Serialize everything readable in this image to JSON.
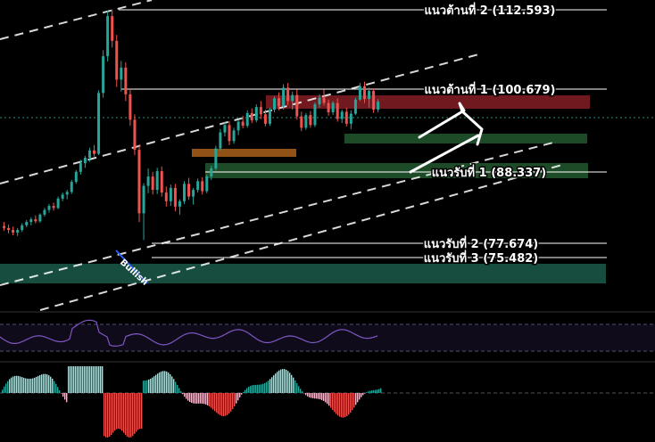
{
  "chart_data": {
    "type": "candlestick",
    "title": "",
    "levels": {
      "resistance": [
        {
          "label": "แนวต้านที่ 2 (112.593)",
          "value": 112.593
        },
        {
          "label": "แนวต้านที่ 1 (100.679)",
          "value": 100.679
        }
      ],
      "support": [
        {
          "label": "แนวรับที่ 1 (88.337)",
          "value": 88.337
        },
        {
          "label": "แนวรับที่ 2 (77.674)",
          "value": 77.674
        },
        {
          "label": "แนวรับที่ 3 (75.482)",
          "value": 75.482
        }
      ]
    },
    "annotation": "Bullish",
    "zones": [
      {
        "kind": "resistance",
        "color": "#7a1c22"
      },
      {
        "kind": "support",
        "color": "#1f4f2a"
      },
      {
        "kind": "demand",
        "color": "#1a5a4a"
      },
      {
        "kind": "supply-minor",
        "color": "#b5671b"
      }
    ],
    "colors": {
      "up": "#26a69a",
      "down": "#ef5350",
      "rsi": "#7e57c2",
      "background": "#000000",
      "lines": "#ffffff"
    },
    "ohlc": [
      [
        80.2,
        80.8,
        79.5,
        79.9
      ],
      [
        79.9,
        80.4,
        79.1,
        79.6
      ],
      [
        79.6,
        80.1,
        78.8,
        79.2
      ],
      [
        79.2,
        79.9,
        78.7,
        79.6
      ],
      [
        79.6,
        80.6,
        79.3,
        80.3
      ],
      [
        80.3,
        81.1,
        80.0,
        80.8
      ],
      [
        80.8,
        81.5,
        80.3,
        81.2
      ],
      [
        81.2,
        81.8,
        80.6,
        80.9
      ],
      [
        80.9,
        82.1,
        80.7,
        81.9
      ],
      [
        81.9,
        82.9,
        81.6,
        82.6
      ],
      [
        82.6,
        83.5,
        82.2,
        83.2
      ],
      [
        83.2,
        83.7,
        82.5,
        82.9
      ],
      [
        82.9,
        84.6,
        82.7,
        84.3
      ],
      [
        84.3,
        85.2,
        83.9,
        84.9
      ],
      [
        84.9,
        85.6,
        84.2,
        85.3
      ],
      [
        85.3,
        87.1,
        85.0,
        86.8
      ],
      [
        86.8,
        88.6,
        86.5,
        88.3
      ],
      [
        88.3,
        90.1,
        87.9,
        89.6
      ],
      [
        89.6,
        90.7,
        88.9,
        90.4
      ],
      [
        90.4,
        91.9,
        89.8,
        91.5
      ],
      [
        91.5,
        92.3,
        90.6,
        91.0
      ],
      [
        91.0,
        100.5,
        90.8,
        100.1
      ],
      [
        100.1,
        106.5,
        99.4,
        105.6
      ],
      [
        105.6,
        112.4,
        104.8,
        111.6
      ],
      [
        111.6,
        112.6,
        106.9,
        107.9
      ],
      [
        107.9,
        108.8,
        101.0,
        102.1
      ],
      [
        102.1,
        104.9,
        100.3,
        103.9
      ],
      [
        103.9,
        104.7,
        98.9,
        99.9
      ],
      [
        99.9,
        100.8,
        95.2,
        96.1
      ],
      [
        96.1,
        96.9,
        90.8,
        91.6
      ],
      [
        91.6,
        92.4,
        80.8,
        82.1
      ],
      [
        82.1,
        86.6,
        78.1,
        86.2
      ],
      [
        86.2,
        88.8,
        85.1,
        87.6
      ],
      [
        87.6,
        88.3,
        84.9,
        85.6
      ],
      [
        85.6,
        88.9,
        85.0,
        88.4
      ],
      [
        88.4,
        89.1,
        84.6,
        85.2
      ],
      [
        85.2,
        86.1,
        83.1,
        83.9
      ],
      [
        83.9,
        86.4,
        83.2,
        85.9
      ],
      [
        85.9,
        86.5,
        82.4,
        83.1
      ],
      [
        83.1,
        84.2,
        81.9,
        83.9
      ],
      [
        83.9,
        86.9,
        83.5,
        86.5
      ],
      [
        86.5,
        87.4,
        84.1,
        84.6
      ],
      [
        84.6,
        85.9,
        83.4,
        85.6
      ],
      [
        85.6,
        87.3,
        85.2,
        86.9
      ],
      [
        86.9,
        87.5,
        84.9,
        85.4
      ],
      [
        85.4,
        87.9,
        85.1,
        87.6
      ],
      [
        87.6,
        89.2,
        87.1,
        88.8
      ],
      [
        88.8,
        92.2,
        88.5,
        91.8
      ],
      [
        91.8,
        94.7,
        91.5,
        94.2
      ],
      [
        94.2,
        95.8,
        93.6,
        95.3
      ],
      [
        95.3,
        95.9,
        92.3,
        92.9
      ],
      [
        92.9,
        94.9,
        92.5,
        94.5
      ],
      [
        94.5,
        96.1,
        93.8,
        95.8
      ],
      [
        95.8,
        96.7,
        94.8,
        95.2
      ],
      [
        95.2,
        97.5,
        94.9,
        97.1
      ],
      [
        97.1,
        97.8,
        95.6,
        96.0
      ],
      [
        96.0,
        98.4,
        95.7,
        98.0
      ],
      [
        98.0,
        98.9,
        96.2,
        96.9
      ],
      [
        96.9,
        97.6,
        95.1,
        95.5
      ],
      [
        95.5,
        97.9,
        95.2,
        97.6
      ],
      [
        97.6,
        99.6,
        97.2,
        99.3
      ],
      [
        99.3,
        100.2,
        97.5,
        98.1
      ],
      [
        98.1,
        101.4,
        97.6,
        100.9
      ],
      [
        100.9,
        101.6,
        98.3,
        98.9
      ],
      [
        98.9,
        100.3,
        97.6,
        99.8
      ],
      [
        99.8,
        100.6,
        96.1,
        96.6
      ],
      [
        96.6,
        97.3,
        94.4,
        94.9
      ],
      [
        94.9,
        97.1,
        94.6,
        96.8
      ],
      [
        96.8,
        97.4,
        94.9,
        95.3
      ],
      [
        95.3,
        98.7,
        95.0,
        98.4
      ],
      [
        98.4,
        99.9,
        97.9,
        99.4
      ],
      [
        99.4,
        100.6,
        98.2,
        98.6
      ],
      [
        98.6,
        99.1,
        96.7,
        97.2
      ],
      [
        97.2,
        98.9,
        96.8,
        98.6
      ],
      [
        98.6,
        99.3,
        95.8,
        96.2
      ],
      [
        96.2,
        97.6,
        95.6,
        97.3
      ],
      [
        97.3,
        97.9,
        95.1,
        95.5
      ],
      [
        95.5,
        97.5,
        94.7,
        97.0
      ],
      [
        97.0,
        99.4,
        96.8,
        99.1
      ],
      [
        99.1,
        101.6,
        98.9,
        101.1
      ],
      [
        101.1,
        101.8,
        98.6,
        99.2
      ],
      [
        99.2,
        100.9,
        97.9,
        100.4
      ],
      [
        100.4,
        100.8,
        97.1,
        97.6
      ],
      [
        97.6,
        99.2,
        97.2,
        98.8
      ]
    ]
  }
}
